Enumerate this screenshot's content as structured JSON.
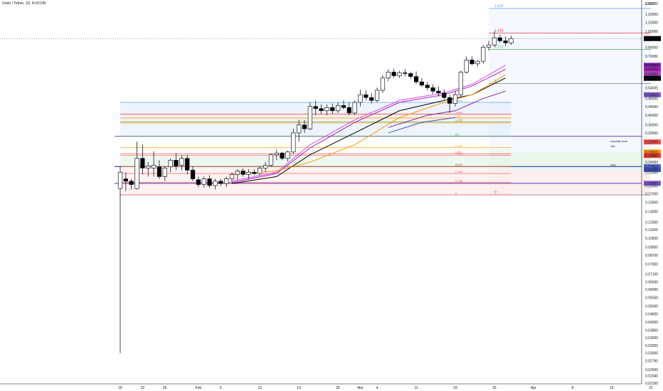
{
  "header": {
    "title": "Ondo / Tether, 1D, KUCOIN"
  },
  "axis": {
    "currency": "USDT"
  },
  "colors": {
    "up": "#ffffff",
    "down": "#000000",
    "wick": "#131722",
    "grid": "#e0e3eb"
  },
  "chart_data": {
    "type": "candlestick",
    "title": "Ondo / Tether, 1D, KUCOIN",
    "scale": "log",
    "ylim": [
      0.0216,
      1.35
    ],
    "y_ticks": [
      "1.35000",
      "1.20000",
      "1.10000",
      "1.00000",
      "0.92211",
      "0.84000",
      "0.76000",
      "0.68000",
      "0.60000",
      "0.54000",
      "0.48000",
      "0.44000",
      "0.40000",
      "0.36000",
      "0.33000",
      "0.30000",
      "0.27000",
      "0.24000",
      "0.21500",
      "0.18500",
      "0.17000",
      "0.15500",
      "0.14000",
      "0.12500",
      "0.11500",
      "0.10500",
      "0.09500",
      "0.08700",
      "0.07900",
      "0.07100",
      "0.06500",
      "0.06000",
      "0.05500",
      "0.05000",
      "0.04600",
      "0.04200",
      "0.03850",
      "0.03550",
      "0.03250",
      "0.03000",
      "0.02760",
      "0.02500",
      "0.02340",
      "0.02160"
    ],
    "x_ticks": [
      {
        "label": "18",
        "day": 0
      },
      {
        "label": "22",
        "day": 4
      },
      {
        "label": "26",
        "day": 8
      },
      {
        "label": "Feb",
        "day": 14
      },
      {
        "label": "5",
        "day": 18
      },
      {
        "label": "12",
        "day": 25
      },
      {
        "label": "19",
        "day": 32
      },
      {
        "label": "26",
        "day": 39
      },
      {
        "label": "Mar",
        "day": 43
      },
      {
        "label": "4",
        "day": 46
      },
      {
        "label": "11",
        "day": 53
      },
      {
        "label": "18",
        "day": 60
      },
      {
        "label": "25",
        "day": 67
      },
      {
        "label": "Apr",
        "day": 74
      },
      {
        "label": "8",
        "day": 81
      },
      {
        "label": "15",
        "day": 88
      },
      {
        "label": "22",
        "day": 95
      }
    ],
    "price_tags": [
      {
        "label": "0.92211",
        "price": 0.92211,
        "color": "#000000"
      },
      {
        "label": "0.68880",
        "price": 0.6888,
        "color": "#7b1fa2"
      },
      {
        "label": "0.66200",
        "price": 0.662,
        "color": "#9c27b0"
      },
      {
        "label": "0.62800",
        "price": 0.628,
        "color": "#ab47bc"
      },
      {
        "label": "0.59798",
        "price": 0.59798,
        "color": "#000000"
      },
      {
        "label": "0.50000",
        "price": 0.5,
        "color": "#7e57c2"
      },
      {
        "label": "0.29900",
        "price": 0.299,
        "color": "#ef5350"
      },
      {
        "label": "0.26800",
        "price": 0.268,
        "color": "#ff9800"
      },
      {
        "label": "0.25800",
        "price": 0.258,
        "color": "#e53935"
      },
      {
        "label": "0.22850",
        "price": 0.2285,
        "color": "#5c6bc0"
      },
      {
        "label": "0.22150",
        "price": 0.2215,
        "color": "#3f51b5"
      },
      {
        "label": "0.19050",
        "price": 0.1905,
        "color": "#7e57c2"
      }
    ],
    "candles": [
      {
        "o": 0.18,
        "h": 0.23,
        "l": 0.03,
        "c": 0.215
      },
      {
        "o": 0.2,
        "h": 0.215,
        "l": 0.175,
        "c": 0.195
      },
      {
        "o": 0.195,
        "h": 0.2,
        "l": 0.178,
        "c": 0.188
      },
      {
        "o": 0.18,
        "h": 0.3,
        "l": 0.178,
        "c": 0.25
      },
      {
        "o": 0.25,
        "h": 0.29,
        "l": 0.21,
        "c": 0.225
      },
      {
        "o": 0.225,
        "h": 0.24,
        "l": 0.205,
        "c": 0.23
      },
      {
        "o": 0.225,
        "h": 0.27,
        "l": 0.205,
        "c": 0.232
      },
      {
        "o": 0.228,
        "h": 0.245,
        "l": 0.2,
        "c": 0.205
      },
      {
        "o": 0.205,
        "h": 0.23,
        "l": 0.195,
        "c": 0.225
      },
      {
        "o": 0.228,
        "h": 0.25,
        "l": 0.215,
        "c": 0.245
      },
      {
        "o": 0.245,
        "h": 0.265,
        "l": 0.22,
        "c": 0.23
      },
      {
        "o": 0.232,
        "h": 0.26,
        "l": 0.22,
        "c": 0.25
      },
      {
        "o": 0.25,
        "h": 0.26,
        "l": 0.21,
        "c": 0.22
      },
      {
        "o": 0.22,
        "h": 0.23,
        "l": 0.195,
        "c": 0.2
      },
      {
        "o": 0.198,
        "h": 0.205,
        "l": 0.183,
        "c": 0.188
      },
      {
        "o": 0.188,
        "h": 0.205,
        "l": 0.182,
        "c": 0.2
      },
      {
        "o": 0.2,
        "h": 0.208,
        "l": 0.182,
        "c": 0.186
      },
      {
        "o": 0.186,
        "h": 0.2,
        "l": 0.178,
        "c": 0.195
      },
      {
        "o": 0.195,
        "h": 0.2,
        "l": 0.185,
        "c": 0.19
      },
      {
        "o": 0.19,
        "h": 0.205,
        "l": 0.183,
        "c": 0.2
      },
      {
        "o": 0.2,
        "h": 0.215,
        "l": 0.192,
        "c": 0.21
      },
      {
        "o": 0.21,
        "h": 0.222,
        "l": 0.198,
        "c": 0.218
      },
      {
        "o": 0.218,
        "h": 0.225,
        "l": 0.205,
        "c": 0.21
      },
      {
        "o": 0.21,
        "h": 0.222,
        "l": 0.2,
        "c": 0.215
      },
      {
        "o": 0.215,
        "h": 0.222,
        "l": 0.208,
        "c": 0.212
      },
      {
        "o": 0.212,
        "h": 0.23,
        "l": 0.208,
        "c": 0.225
      },
      {
        "o": 0.225,
        "h": 0.24,
        "l": 0.215,
        "c": 0.232
      },
      {
        "o": 0.232,
        "h": 0.265,
        "l": 0.228,
        "c": 0.26
      },
      {
        "o": 0.26,
        "h": 0.275,
        "l": 0.245,
        "c": 0.265
      },
      {
        "o": 0.265,
        "h": 0.268,
        "l": 0.245,
        "c": 0.25
      },
      {
        "o": 0.25,
        "h": 0.272,
        "l": 0.242,
        "c": 0.268
      },
      {
        "o": 0.268,
        "h": 0.345,
        "l": 0.262,
        "c": 0.33
      },
      {
        "o": 0.33,
        "h": 0.38,
        "l": 0.3,
        "c": 0.36
      },
      {
        "o": 0.36,
        "h": 0.38,
        "l": 0.33,
        "c": 0.345
      },
      {
        "o": 0.345,
        "h": 0.46,
        "l": 0.34,
        "c": 0.44
      },
      {
        "o": 0.44,
        "h": 0.47,
        "l": 0.4,
        "c": 0.43
      },
      {
        "o": 0.43,
        "h": 0.45,
        "l": 0.405,
        "c": 0.42
      },
      {
        "o": 0.42,
        "h": 0.45,
        "l": 0.4,
        "c": 0.435
      },
      {
        "o": 0.435,
        "h": 0.455,
        "l": 0.405,
        "c": 0.42
      },
      {
        "o": 0.42,
        "h": 0.46,
        "l": 0.41,
        "c": 0.445
      },
      {
        "o": 0.445,
        "h": 0.47,
        "l": 0.425,
        "c": 0.435
      },
      {
        "o": 0.435,
        "h": 0.46,
        "l": 0.4,
        "c": 0.41
      },
      {
        "o": 0.41,
        "h": 0.47,
        "l": 0.4,
        "c": 0.46
      },
      {
        "o": 0.46,
        "h": 0.53,
        "l": 0.44,
        "c": 0.5
      },
      {
        "o": 0.5,
        "h": 0.525,
        "l": 0.47,
        "c": 0.485
      },
      {
        "o": 0.485,
        "h": 0.51,
        "l": 0.455,
        "c": 0.47
      },
      {
        "o": 0.47,
        "h": 0.54,
        "l": 0.46,
        "c": 0.525
      },
      {
        "o": 0.525,
        "h": 0.62,
        "l": 0.51,
        "c": 0.6
      },
      {
        "o": 0.6,
        "h": 0.66,
        "l": 0.58,
        "c": 0.64
      },
      {
        "o": 0.64,
        "h": 0.665,
        "l": 0.6,
        "c": 0.615
      },
      {
        "o": 0.615,
        "h": 0.65,
        "l": 0.6,
        "c": 0.635
      },
      {
        "o": 0.635,
        "h": 0.66,
        "l": 0.61,
        "c": 0.63
      },
      {
        "o": 0.63,
        "h": 0.64,
        "l": 0.595,
        "c": 0.61
      },
      {
        "o": 0.61,
        "h": 0.645,
        "l": 0.56,
        "c": 0.575
      },
      {
        "o": 0.575,
        "h": 0.6,
        "l": 0.545,
        "c": 0.555
      },
      {
        "o": 0.555,
        "h": 0.575,
        "l": 0.525,
        "c": 0.54
      },
      {
        "o": 0.54,
        "h": 0.56,
        "l": 0.505,
        "c": 0.52
      },
      {
        "o": 0.52,
        "h": 0.545,
        "l": 0.49,
        "c": 0.51
      },
      {
        "o": 0.51,
        "h": 0.53,
        "l": 0.475,
        "c": 0.485
      },
      {
        "o": 0.485,
        "h": 0.5,
        "l": 0.41,
        "c": 0.455
      },
      {
        "o": 0.455,
        "h": 0.52,
        "l": 0.44,
        "c": 0.5
      },
      {
        "o": 0.5,
        "h": 0.65,
        "l": 0.49,
        "c": 0.64
      },
      {
        "o": 0.64,
        "h": 0.76,
        "l": 0.63,
        "c": 0.73
      },
      {
        "o": 0.73,
        "h": 0.76,
        "l": 0.69,
        "c": 0.7
      },
      {
        "o": 0.7,
        "h": 0.73,
        "l": 0.68,
        "c": 0.72
      },
      {
        "o": 0.72,
        "h": 0.86,
        "l": 0.7,
        "c": 0.84
      },
      {
        "o": 0.84,
        "h": 0.9,
        "l": 0.81,
        "c": 0.86
      },
      {
        "o": 0.86,
        "h": 1.0,
        "l": 0.84,
        "c": 0.93
      },
      {
        "o": 0.93,
        "h": 0.96,
        "l": 0.88,
        "c": 0.9
      },
      {
        "o": 0.9,
        "h": 0.94,
        "l": 0.85,
        "c": 0.88
      },
      {
        "o": 0.88,
        "h": 0.95,
        "l": 0.86,
        "c": 0.922
      }
    ],
    "moving_averages": [
      {
        "color": "#000000",
        "values": [
          [
            20,
            0.19
          ],
          [
            28,
            0.205
          ],
          [
            34,
            0.26
          ],
          [
            42,
            0.33
          ],
          [
            50,
            0.42
          ],
          [
            58,
            0.47
          ],
          [
            63,
            0.5
          ],
          [
            69,
            0.6
          ]
        ]
      },
      {
        "color": "#e040fb",
        "values": [
          [
            20,
            0.195
          ],
          [
            28,
            0.215
          ],
          [
            34,
            0.29
          ],
          [
            42,
            0.38
          ],
          [
            50,
            0.47
          ],
          [
            58,
            0.51
          ],
          [
            63,
            0.56
          ],
          [
            69,
            0.69
          ]
        ]
      },
      {
        "color": "#9c27b0",
        "values": [
          [
            20,
            0.192
          ],
          [
            28,
            0.212
          ],
          [
            34,
            0.28
          ],
          [
            42,
            0.37
          ],
          [
            50,
            0.46
          ],
          [
            58,
            0.5
          ],
          [
            63,
            0.55
          ],
          [
            69,
            0.66
          ]
        ]
      },
      {
        "color": "#ff9800",
        "values": [
          [
            20,
            0.21
          ],
          [
            28,
            0.218
          ],
          [
            34,
            0.24
          ],
          [
            42,
            0.29
          ],
          [
            50,
            0.39
          ],
          [
            58,
            0.46
          ],
          [
            63,
            0.5
          ],
          [
            69,
            0.62
          ]
        ]
      },
      {
        "color": "#7b1fa2",
        "values": [
          [
            48,
            0.35
          ],
          [
            55,
            0.4
          ],
          [
            60,
            0.42
          ],
          [
            65,
            0.48
          ],
          [
            69,
            0.52
          ]
        ]
      },
      {
        "color": "#3f51b5",
        "values": [
          [
            48,
            0.33
          ],
          [
            54,
            0.37
          ],
          [
            60,
            0.39
          ]
        ]
      }
    ],
    "fib_levels": [
      {
        "label": "1.618",
        "price": 1.28,
        "color": "#5b9cf6"
      },
      {
        "label": "1.414",
        "price": 0.98,
        "color": "#f23645"
      },
      {
        "label": "1.272",
        "price": 0.82,
        "color": "#4caf50"
      },
      {
        "label": "1",
        "price": 0.565,
        "color": "#787b86"
      },
      {
        "label": "0",
        "price": 0.168,
        "color": "#787b86"
      }
    ],
    "left_fib_levels": [
      {
        "label": "1.618",
        "price": 0.46,
        "color": "#5b9cf6"
      },
      {
        "label": "1.414",
        "price": 0.405,
        "color": "#f23645"
      },
      {
        "label": "1.272",
        "price": 0.372,
        "color": "#4caf50"
      },
      {
        "label": "0.66",
        "price": 0.388,
        "color": "#ff9800"
      },
      {
        "label": "0.618",
        "price": 0.368,
        "color": "#ff9800"
      },
      {
        "label": "1",
        "price": 0.318,
        "color": "#787b86"
      },
      {
        "label": "0.5",
        "price": 0.318,
        "color": "#4caf50"
      },
      {
        "label": "0.382",
        "price": 0.281,
        "color": "#ff9800"
      },
      {
        "label": "0.66",
        "price": 0.263,
        "color": "#ef5350"
      },
      {
        "label": "0.618",
        "price": 0.258,
        "color": "#ef5350"
      },
      {
        "label": "0.5",
        "price": 0.228,
        "color": "#4caf50"
      },
      {
        "label": "0.382",
        "price": 0.212,
        "color": "#ef5350"
      },
      {
        "label": "0.236",
        "price": 0.192,
        "color": "#ef5350"
      },
      {
        "label": "0",
        "price": 0.168,
        "color": "#ef5350"
      },
      {
        "label": "0.236",
        "price": 0.229,
        "color": "#ef5350"
      }
    ],
    "annotations": [
      {
        "label": "Liquidity level",
        "price": 0.296
      },
      {
        "label": "VAH",
        "price": 0.2285
      },
      {
        "label": "VAL",
        "price": 0.28
      }
    ]
  }
}
